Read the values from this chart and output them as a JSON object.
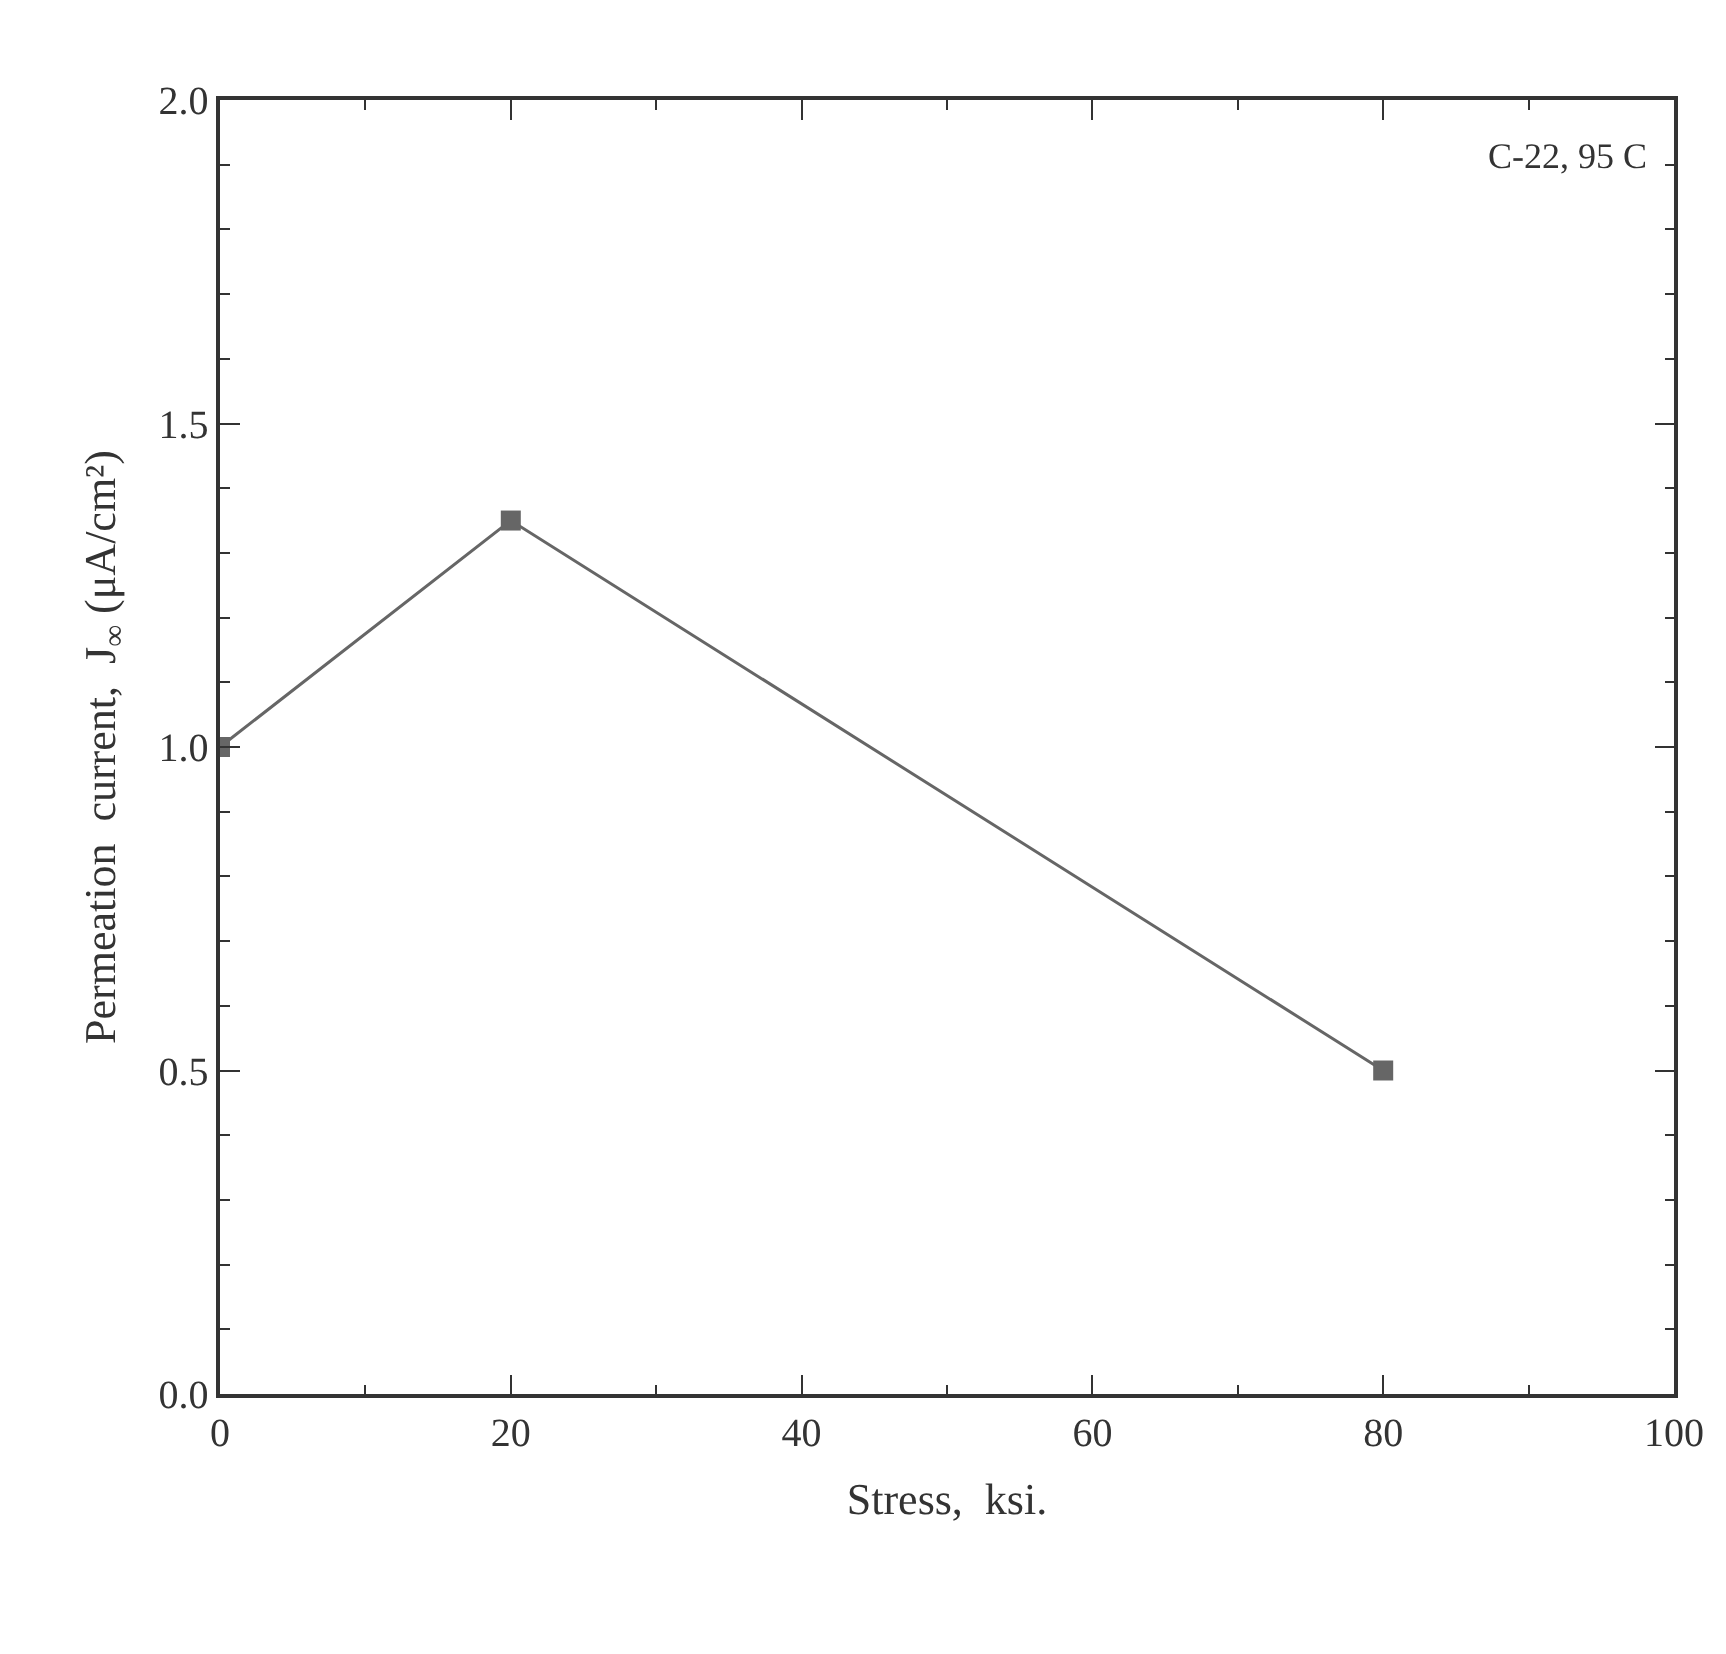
{
  "chart_data": {
    "type": "line",
    "xlabel": "Stress,  ksi.",
    "ylabel": "Permeation  current,  J$_{∞}$ (μA/cm²)",
    "x": [
      0,
      20,
      80
    ],
    "series": [
      {
        "color": "#666666",
        "values": [
          1.0,
          1.35,
          0.5
        ]
      }
    ],
    "marker": "square",
    "line_style": "solid",
    "xlim": [
      0,
      100
    ],
    "xticks": [
      0,
      20,
      40,
      60,
      80,
      100
    ],
    "ylim": [
      0,
      2.0
    ],
    "yticks": [
      {
        "value": 0,
        "label": "0.0"
      },
      {
        "value": 0.5,
        "label": "0.5"
      },
      {
        "value": 1.0,
        "label": "1.0"
      },
      {
        "value": 1.5,
        "label": "1.5"
      },
      {
        "value": 2.0,
        "label": "2.0"
      }
    ],
    "annotations": [
      "C-22, 95 C"
    ]
  }
}
